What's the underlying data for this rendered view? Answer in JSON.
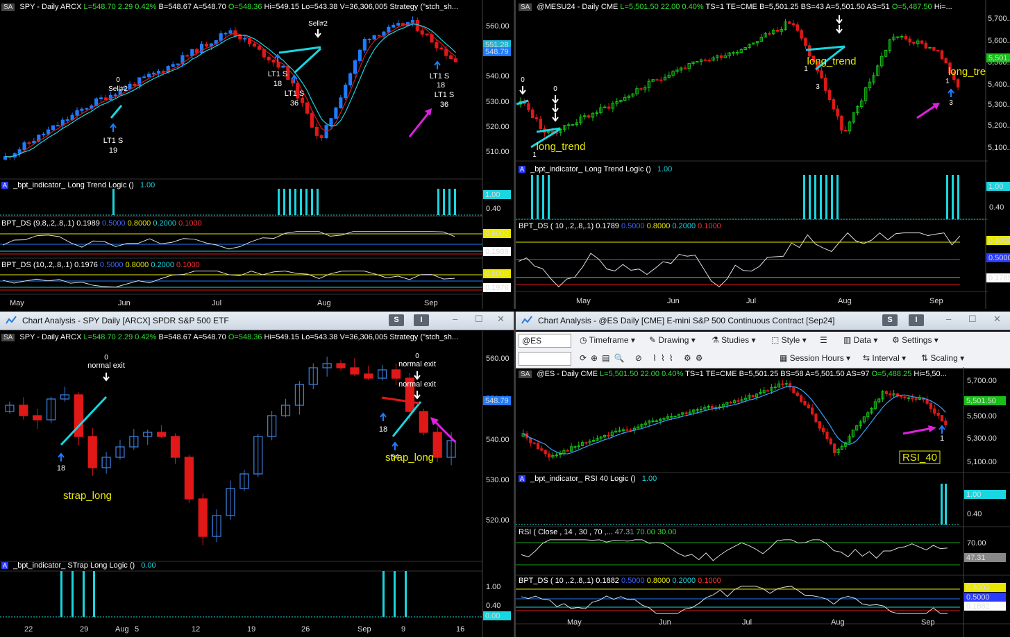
{
  "colors": {
    "up": "#18c018",
    "down": "#e01818",
    "upBlue": "#1e7bff",
    "cyan": "#19d6e0",
    "yellow": "#e8e800",
    "magenta": "#e020e0",
    "accent": "#ffffff"
  },
  "p1": {
    "header": {
      "sa": "SA",
      "sym": "SPY - Daily  ARCX",
      "L": "L=548.70",
      "chg": "2.29",
      "pct": "0.42%",
      "B": "B=548.67",
      "A": "A=548.70",
      "O": "O=548.36",
      "Hi": "Hi=549.15",
      "Lo": "Lo=543.38",
      "V": "V=36,306,005",
      "strat": "Strategy (\"stch_sh..."
    },
    "price_ticks": [
      "560.00",
      "550.00",
      "540.00",
      "530.00",
      "520.00",
      "510.00"
    ],
    "last_price": "548.79",
    "ma_price": "551.28",
    "ind1": {
      "sa": "A",
      "name": "_bpt_indicator_ Long Trend Logic ()",
      "val": "1.00",
      "v1": "1.00",
      "v2": "0.40"
    },
    "ind2": {
      "name": "BPT_DS (9.8,.2,.8,.1)",
      "v": "0.1989",
      "a": "0.5000",
      "b": "0.8000",
      "c": "0.2000",
      "d": "0.1000",
      "tick1": "0.8000",
      "tick2": "0.1989"
    },
    "ind3": {
      "name": "BPT_DS (10,.2,.8,.1)",
      "v": "0.1976",
      "a": "0.5000",
      "b": "0.8000",
      "c": "0.2000",
      "d": "0.1000",
      "tick1": "0.8000",
      "tick2": "0.1976"
    },
    "months": [
      "May",
      "Jun",
      "Jul",
      "Aug",
      "Sep"
    ],
    "ann": {
      "zero": "0",
      "sell2": "Sell#2",
      "lt1s": "LT1 S",
      "n19": "19",
      "n18": "18",
      "n36": "36",
      "sell2b": "Sell#2"
    }
  },
  "p2": {
    "header": {
      "sa": "SA",
      "sym": "@MESU24 - Daily  CME",
      "L": "L=5,501.50",
      "chg": "22.00",
      "pct": "0.40%",
      "TS": "TS=1",
      "TE": "TE=CME",
      "B": "B=5,501.25",
      "BS": "BS=43",
      "A": "A=5,501.50",
      "AS": "AS=51",
      "O": "O=5,487.50",
      "Hi": "Hi=..."
    },
    "price_ticks": [
      "5,700...",
      "5,600...",
      "5,500...",
      "5,400...",
      "5,300...",
      "5,200...",
      "5,100..."
    ],
    "last_price": "5,501.5",
    "ind1": {
      "sa": "A",
      "name": "_bpt_indicator_ Long Trend Logic ()",
      "val": "1.00",
      "v1": "1.00",
      "v2": "0.40"
    },
    "ind2": {
      "name": "BPT_DS ( 10 ,.2,.8,.1)",
      "v": "0.1789",
      "a": "0.5000",
      "b": "0.8000",
      "c": "0.2000",
      "d": "0.1000",
      "tick1": "0.8000",
      "tick2": "0.5000",
      "tick3": "0.1789"
    },
    "months": [
      "May",
      "Jun",
      "Jul",
      "Aug",
      "Sep"
    ],
    "ann": {
      "zero": "0",
      "lt": "long_trend",
      "lt2": "long_tre",
      "one": "1",
      "three": "3"
    }
  },
  "p3": {
    "title": "Chart Analysis - SPY Daily [ARCX] SPDR S&P 500 ETF",
    "btn_s": "S",
    "btn_i": "I",
    "header": {
      "sa": "SA",
      "sym": "SPY - Daily  ARCX",
      "L": "L=548.70",
      "chg": "2.29",
      "pct": "0.42%",
      "B": "B=548.67",
      "A": "A=548.70",
      "O": "O=548.36",
      "Hi": "Hi=549.15",
      "Lo": "Lo=543.38",
      "V": "V=36,306,005",
      "strat": "Strategy (\"stch_sh..."
    },
    "price_ticks": [
      "560.00",
      "550.00",
      "540.00",
      "530.00",
      "520.00"
    ],
    "last_price": "548.79",
    "ind1": {
      "sa": "A",
      "name": "_bpt_indicator_ STrap Long Logic ()",
      "val": "0.00",
      "v1": "1.00",
      "v2": "0.40",
      "v3": "0.00"
    },
    "dates": [
      "22",
      "29",
      "Aug",
      "5",
      "12",
      "19",
      "26",
      "Sep",
      "9",
      "16"
    ],
    "ann": {
      "zero": "0",
      "ne": "normal exit",
      "n18": "18",
      "sl": "strap_long",
      "s54": "54"
    }
  },
  "p4": {
    "title": "Chart Analysis - @ES Daily [CME] E-mini S&P 500 Continuous Contract [Sep24]",
    "btn_s": "S",
    "btn_i": "I",
    "toolbar": {
      "sym": "@ES",
      "timeframe": "Timeframe",
      "drawing": "Drawing",
      "studies": "Studies",
      "style": "Style",
      "data": "Data",
      "settings": "Settings",
      "session": "Session Hours",
      "interval": "Interval",
      "scaling": "Scaling"
    },
    "header": {
      "sa": "SA",
      "sym": "@ES - Daily  CME",
      "L": "L=5,501.50",
      "chg": "22.00",
      "pct": "0.40%",
      "TS": "TS=1",
      "TE": "TE=CME",
      "B": "B=5,501.25",
      "BS": "BS=58",
      "A": "A=5,501.50",
      "AS": "AS=97",
      "O": "O=5,488.25",
      "Hi": "Hi=5,50..."
    },
    "price_ticks": [
      "5,700.00",
      "5,500.00",
      "5,300.00",
      "5,100.00"
    ],
    "last_price": "5,501.50",
    "ma_price": "5,501.50",
    "ind1": {
      "sa": "A",
      "name": "_bpt_indicator_ RSI 40 Logic ()",
      "val": "1.00",
      "v1": "1.00",
      "v2": "0.40"
    },
    "ind2": {
      "name": "RSI ( Close , 14 , 30 , 70 ,...",
      "v": "47.31",
      "a": "70.00",
      "b": "30.00",
      "tick1": "70.00",
      "tick2": "47.31"
    },
    "ind3": {
      "name": "BPT_DS ( 10 ,.2,.8,.1)",
      "v": "0.1882",
      "a": "0.5000",
      "b": "0.8000",
      "c": "0.2000",
      "d": "0.1000",
      "tick1": "0.8000",
      "tick2": "0.5000",
      "tick3": "0.1882"
    },
    "months": [
      "May",
      "Jun",
      "Jul",
      "Aug",
      "Sep"
    ],
    "ann": {
      "rsi": "RSI_40",
      "one": "1"
    }
  }
}
